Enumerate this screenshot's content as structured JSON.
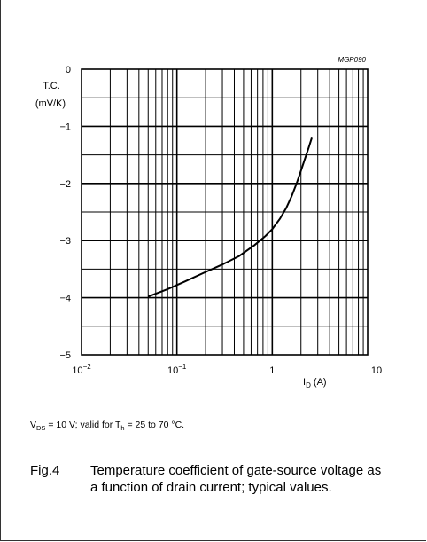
{
  "chart_data": {
    "type": "line",
    "code_label": "MGP090",
    "ylabel_line1": "T.C.",
    "ylabel_line2": "(mV/K)",
    "xlabel_sym": "I",
    "xlabel_sub": "D",
    "xlabel_unit": " (A)",
    "x_scale": "log",
    "xlim": [
      0.01,
      10
    ],
    "ylim": [
      -5,
      0
    ],
    "grid": true,
    "y_ticks": [
      {
        "value": 0,
        "label": "0"
      },
      {
        "value": -1,
        "label": "−1"
      },
      {
        "value": -2,
        "label": "−2"
      },
      {
        "value": -3,
        "label": "−3"
      },
      {
        "value": -4,
        "label": "−4"
      },
      {
        "value": -5,
        "label": "−5"
      }
    ],
    "x_ticks": [
      {
        "value": 0.01,
        "base": "10",
        "exp": "−2"
      },
      {
        "value": 0.1,
        "base": "10",
        "exp": "−1"
      },
      {
        "value": 1,
        "base": "1",
        "exp": ""
      },
      {
        "value": 10,
        "base": "10",
        "exp": ""
      }
    ],
    "series": [
      {
        "x": [
          0.05,
          0.08,
          0.12,
          0.2,
          0.3,
          0.45,
          0.65,
          0.85,
          1.0,
          1.2,
          1.4,
          1.6,
          1.8,
          2.0,
          2.2,
          2.4,
          2.6
        ],
        "y": [
          -3.98,
          -3.85,
          -3.72,
          -3.55,
          -3.42,
          -3.27,
          -3.08,
          -2.92,
          -2.8,
          -2.62,
          -2.43,
          -2.22,
          -2.0,
          -1.78,
          -1.57,
          -1.38,
          -1.2
        ]
      }
    ]
  },
  "caption": {
    "conditions_v": "V",
    "conditions_v_sub": "DS",
    "conditions_mid": " = 10 V; valid for T",
    "conditions_t_sub": "h",
    "conditions_end": " = 25 to 70 °C.",
    "fig_number": "Fig.4",
    "fig_text": "Temperature coefficient of gate-source voltage as a function of drain current; typical values."
  }
}
